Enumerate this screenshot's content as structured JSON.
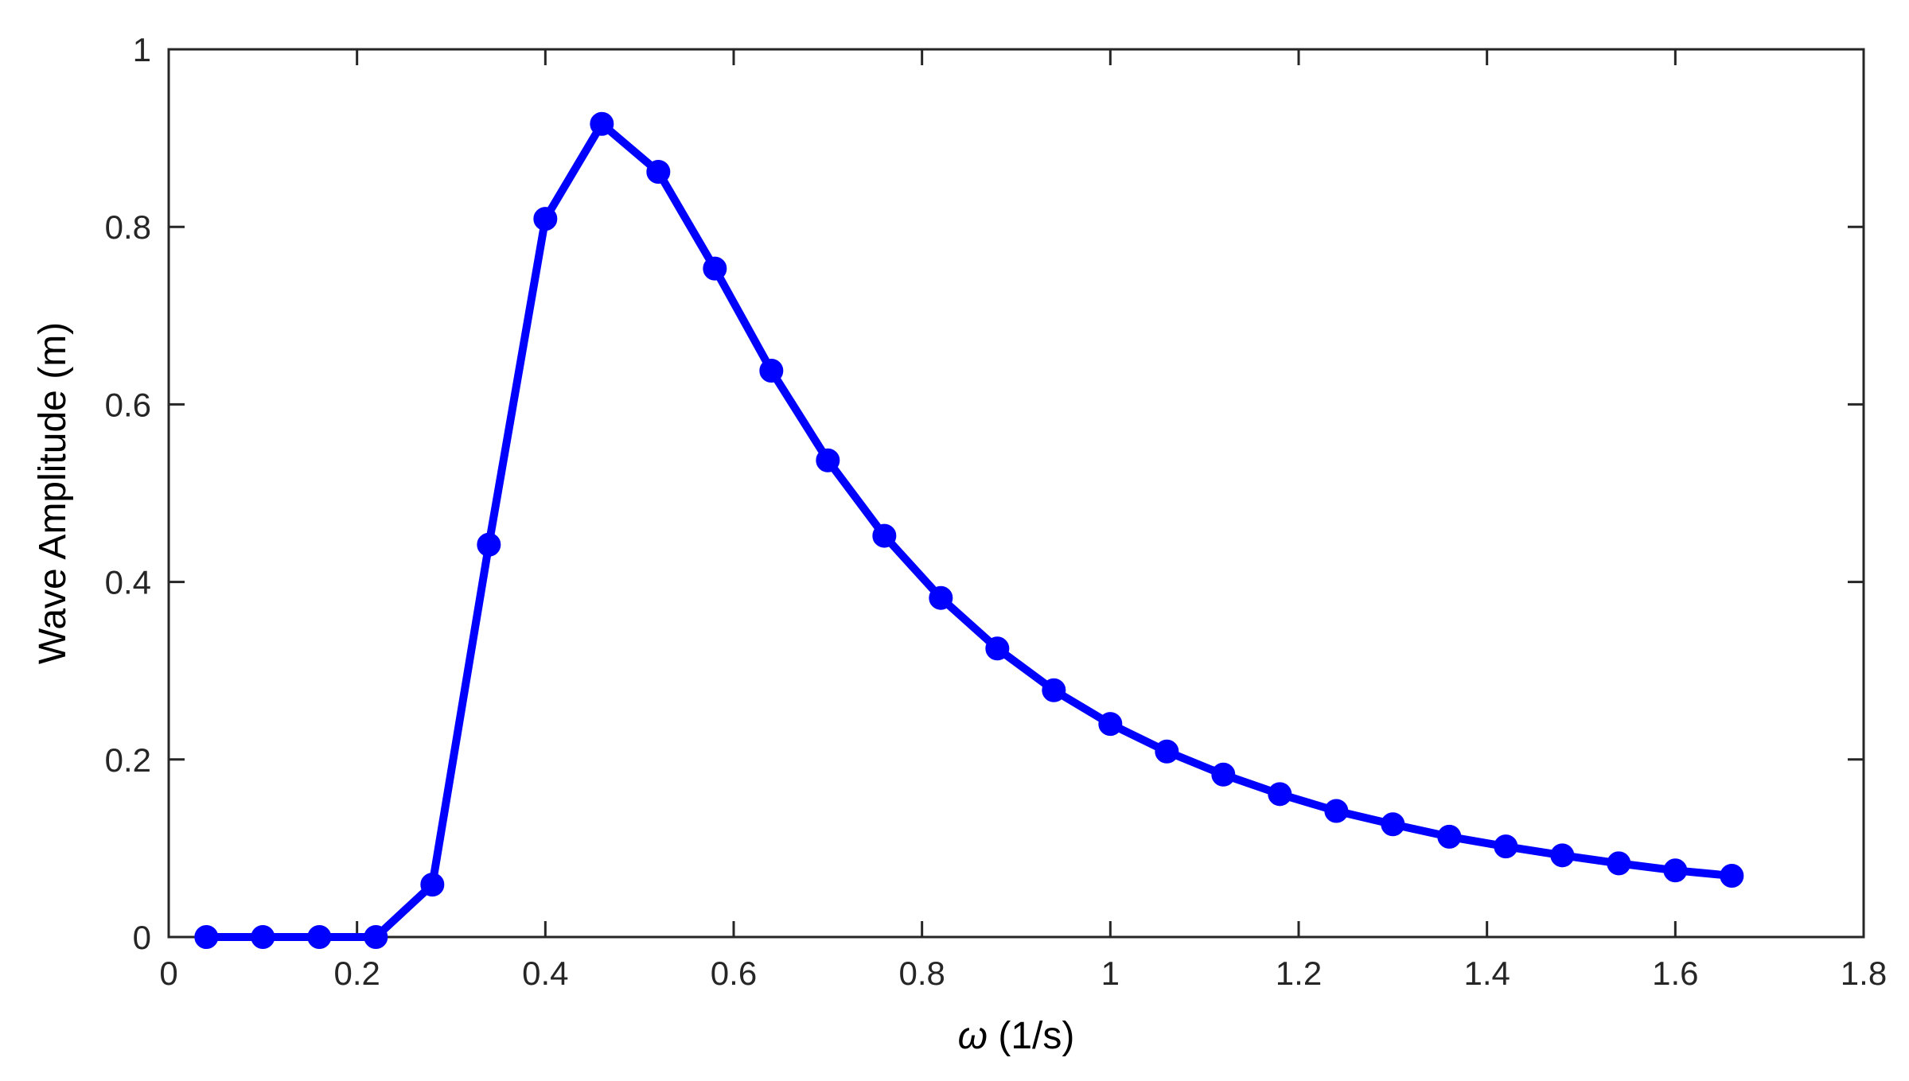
{
  "chart_data": {
    "type": "line",
    "title": "",
    "xlabel_symbol": "ω",
    "xlabel_units": " (1/s)",
    "ylabel": "Wave Amplitude (m)",
    "xlim": [
      0,
      1.8
    ],
    "ylim": [
      0,
      1
    ],
    "xticks": [
      0,
      0.2,
      0.4,
      0.6,
      0.8,
      1,
      1.2,
      1.4,
      1.6,
      1.8
    ],
    "xtick_labels": [
      "0",
      "0.2",
      "0.4",
      "0.6",
      "0.8",
      "1",
      "1.2",
      "1.4",
      "1.6",
      "1.8"
    ],
    "yticks": [
      0,
      0.2,
      0.4,
      0.6,
      0.8,
      1
    ],
    "ytick_labels": [
      "0",
      "0.2",
      "0.4",
      "0.6",
      "0.8",
      "1"
    ],
    "grid": false,
    "box": true,
    "line_color": "#0000ff",
    "marker": "circle",
    "series": [
      {
        "x": [
          0.04,
          0.1,
          0.16,
          0.22,
          0.28,
          0.34,
          0.4,
          0.46,
          0.52,
          0.58,
          0.64,
          0.7,
          0.76,
          0.82,
          0.88,
          0.94,
          1.0,
          1.06,
          1.12,
          1.18,
          1.24,
          1.3,
          1.36,
          1.42,
          1.48,
          1.54,
          1.6,
          1.66
        ],
        "y": [
          0.0,
          0.0,
          0.0,
          0.0,
          0.059,
          0.442,
          0.809,
          0.916,
          0.862,
          0.753,
          0.638,
          0.537,
          0.452,
          0.382,
          0.325,
          0.278,
          0.24,
          0.209,
          0.183,
          0.161,
          0.142,
          0.127,
          0.113,
          0.102,
          0.092,
          0.083,
          0.075,
          0.069
        ]
      }
    ]
  }
}
